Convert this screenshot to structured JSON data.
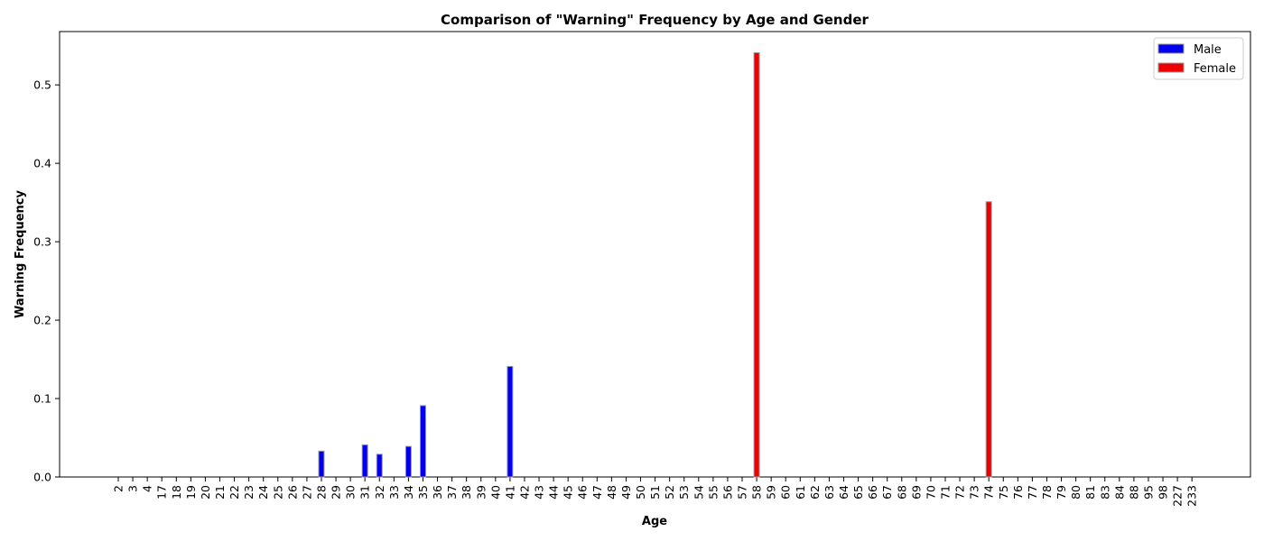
{
  "chart_data": {
    "type": "bar",
    "title": "Comparison of \"Warning\" Frequency by Age and Gender",
    "xlabel": "Age",
    "ylabel": "Warning Frequency",
    "categories": [
      "2",
      "3",
      "4",
      "17",
      "18",
      "19",
      "20",
      "21",
      "22",
      "23",
      "24",
      "25",
      "26",
      "27",
      "28",
      "29",
      "30",
      "31",
      "32",
      "33",
      "34",
      "35",
      "36",
      "37",
      "38",
      "39",
      "40",
      "41",
      "42",
      "43",
      "44",
      "45",
      "46",
      "47",
      "48",
      "49",
      "50",
      "51",
      "52",
      "53",
      "54",
      "55",
      "56",
      "57",
      "58",
      "59",
      "60",
      "61",
      "62",
      "63",
      "64",
      "65",
      "66",
      "67",
      "68",
      "69",
      "70",
      "71",
      "72",
      "73",
      "74",
      "75",
      "76",
      "77",
      "78",
      "79",
      "80",
      "81",
      "83",
      "84",
      "88",
      "95",
      "98",
      "227",
      "233"
    ],
    "series": [
      {
        "name": "Male",
        "color": "#0000ee",
        "values": [
          0,
          0,
          0,
          0,
          0,
          0,
          0,
          0,
          0,
          0,
          0,
          0,
          0,
          0,
          0.033,
          0,
          0,
          0.041,
          0.029,
          0,
          0.039,
          0.091,
          0,
          0,
          0,
          0,
          0,
          0.141,
          0,
          0,
          0,
          0,
          0,
          0,
          0,
          0,
          0,
          0,
          0,
          0,
          0,
          0,
          0,
          0,
          0,
          0,
          0,
          0,
          0,
          0,
          0,
          0,
          0,
          0,
          0,
          0,
          0,
          0,
          0,
          0,
          0,
          0,
          0,
          0,
          0,
          0,
          0,
          0,
          0,
          0,
          0,
          0,
          0,
          0,
          0
        ]
      },
      {
        "name": "Female",
        "color": "#ee0000",
        "values": [
          0,
          0,
          0,
          0,
          0,
          0,
          0,
          0,
          0,
          0,
          0,
          0,
          0,
          0,
          0,
          0,
          0,
          0,
          0,
          0,
          0,
          0,
          0,
          0,
          0,
          0,
          0,
          0,
          0,
          0,
          0,
          0,
          0,
          0,
          0,
          0,
          0,
          0,
          0,
          0,
          0,
          0,
          0,
          0,
          0.541,
          0,
          0,
          0,
          0,
          0,
          0,
          0,
          0,
          0,
          0,
          0,
          0,
          0,
          0,
          0,
          0.351,
          0,
          0,
          0,
          0,
          0,
          0,
          0,
          0,
          0,
          0,
          0,
          0,
          0,
          0
        ]
      }
    ],
    "ylim": [
      0,
      0.568
    ],
    "yticks": [
      "0.0",
      "0.1",
      "0.2",
      "0.3",
      "0.4",
      "0.5"
    ],
    "grid": false,
    "legend_position": "top-right"
  }
}
